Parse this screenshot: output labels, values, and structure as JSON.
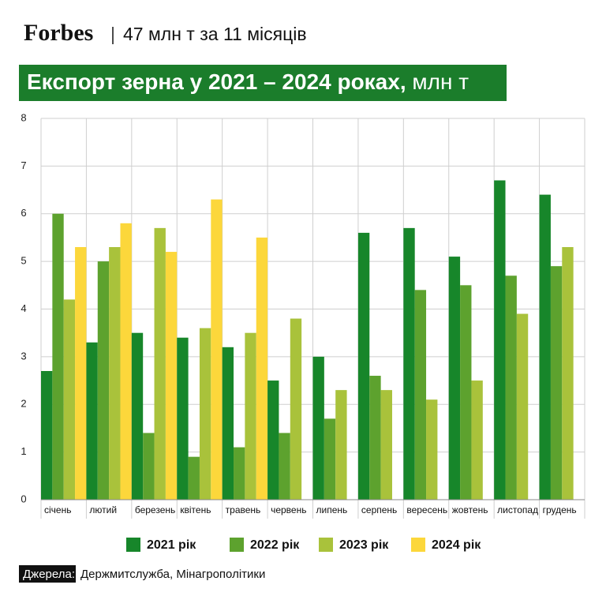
{
  "header": {
    "brand": "Forbes",
    "subtitle": "47 млн т за 11 місяців"
  },
  "chart_data": {
    "type": "bar",
    "title": "Експорт зерна у 2021 – 2024 роках,",
    "title_unit": "млн т",
    "categories": [
      "січень",
      "лютий",
      "березень",
      "квітень",
      "травень",
      "червень",
      "липень",
      "серпень",
      "вересень",
      "жовтень",
      "листопад",
      "грудень"
    ],
    "series": [
      {
        "name": "2021 рік",
        "color": "#17862a",
        "values": [
          2.7,
          3.3,
          3.5,
          3.4,
          3.2,
          2.5,
          3.0,
          5.6,
          5.7,
          5.1,
          6.7,
          6.4
        ]
      },
      {
        "name": "2022 рік",
        "color": "#5da22e",
        "values": [
          6.0,
          5.0,
          1.4,
          0.9,
          1.1,
          1.4,
          1.7,
          2.6,
          4.4,
          4.5,
          4.7,
          4.9
        ]
      },
      {
        "name": "2023 рік",
        "color": "#a9c23b",
        "values": [
          4.2,
          5.3,
          5.7,
          3.6,
          3.5,
          3.8,
          2.3,
          2.3,
          2.1,
          2.5,
          3.9,
          5.3
        ]
      },
      {
        "name": "2024 рік",
        "color": "#fcd73b",
        "values": [
          5.3,
          5.8,
          5.2,
          6.3,
          5.5,
          null,
          null,
          null,
          null,
          null,
          null,
          null
        ]
      }
    ],
    "ylim": [
      0,
      8
    ],
    "yticks": [
      0,
      1,
      2,
      3,
      4,
      5,
      6,
      7,
      8
    ],
    "grid": true
  },
  "source": {
    "label": "Джерела:",
    "text": "Держмитслужба, Мінагрополітики"
  }
}
